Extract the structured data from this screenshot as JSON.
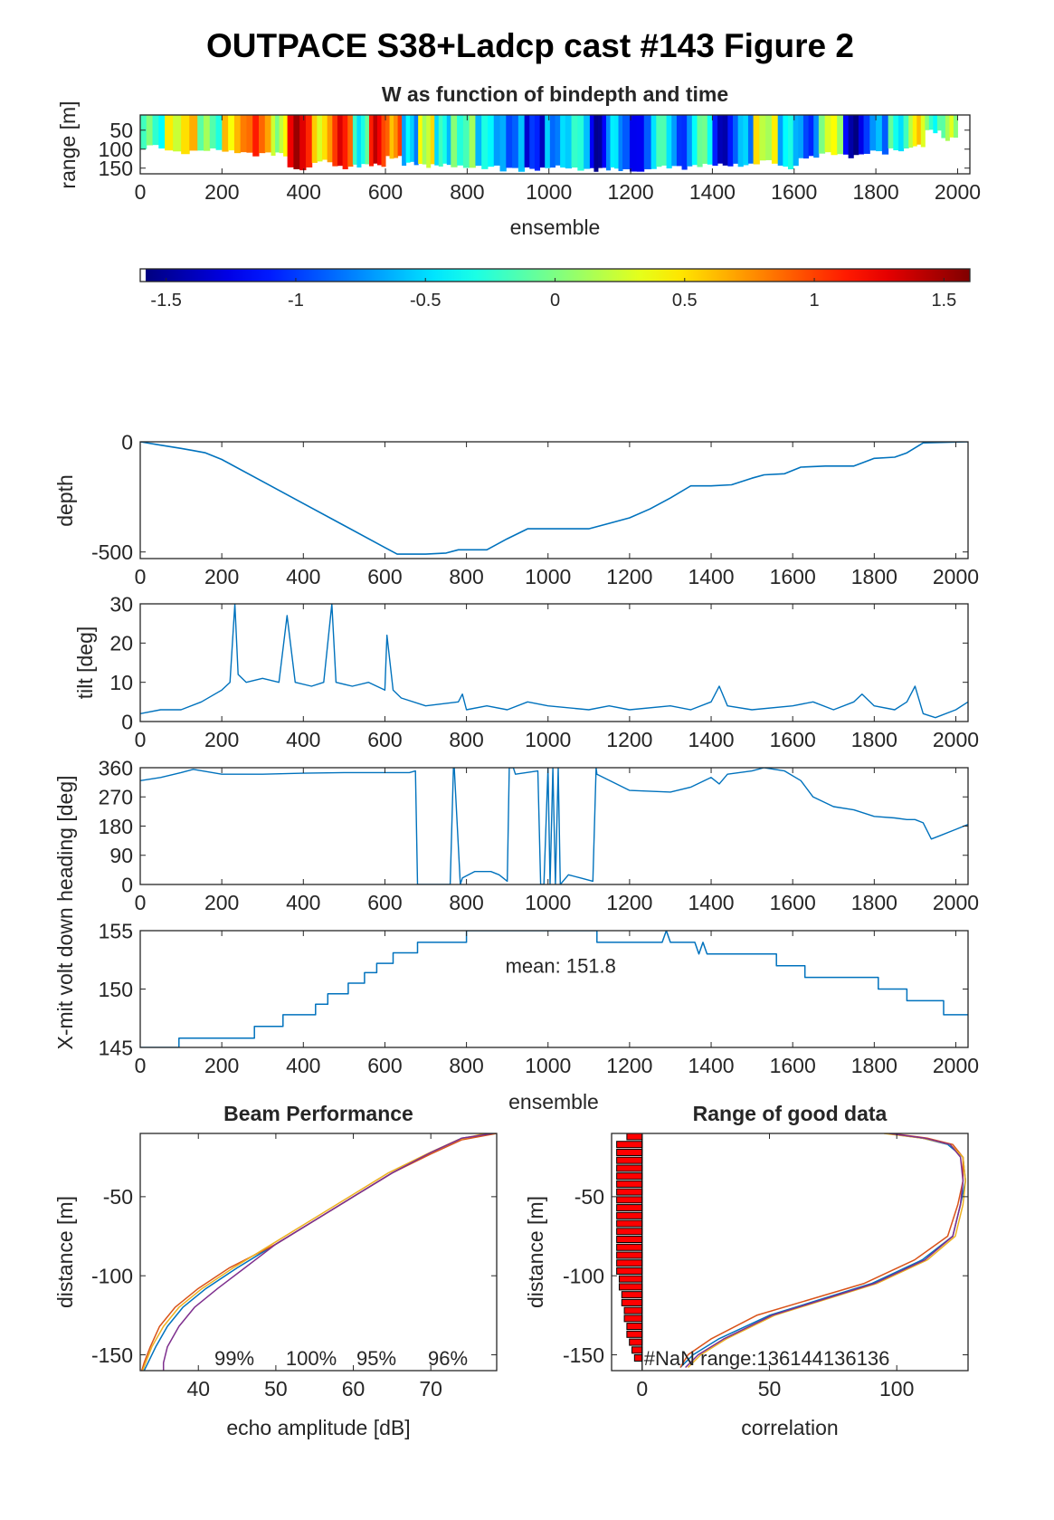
{
  "figure": {
    "title": "OUTPACE S38+Ladcp cast #143 Figure 2"
  },
  "colors": {
    "line": "#0072BD",
    "axis": "#262626",
    "beams": [
      "#0072BD",
      "#D95319",
      "#EDB120",
      "#7E2F8E"
    ],
    "nan_bar": "#FF0000"
  },
  "chart_data": [
    {
      "id": "w",
      "type": "heatmap",
      "title": "W as function of bindepth and time",
      "xlabel": "ensemble",
      "ylabel": "range [m]",
      "xlim": [
        0,
        2030
      ],
      "ylim": [
        165,
        10
      ],
      "xticks": [
        0,
        200,
        400,
        600,
        800,
        1000,
        1200,
        1400,
        1600,
        1800,
        2000
      ],
      "yticks": [
        50,
        100,
        150
      ],
      "colorbar": {
        "clim": [
          -1.6,
          1.6
        ],
        "ticks": [
          -1.5,
          -1,
          -0.5,
          0,
          0.5,
          1,
          1.5
        ],
        "ticklabels": [
          "-1.5",
          "-1",
          "-0.5",
          "0",
          "0.5",
          "1",
          "1.5"
        ],
        "colormap": "jet"
      },
      "columns": [
        {
          "x0": 0,
          "x1": 60,
          "w": -0.2,
          "bottom": 100
        },
        {
          "x0": 60,
          "x1": 140,
          "w": 0.45,
          "bottom": 115
        },
        {
          "x0": 140,
          "x1": 200,
          "w": -0.1,
          "bottom": 110
        },
        {
          "x0": 200,
          "x1": 260,
          "w": 0.6,
          "bottom": 115
        },
        {
          "x0": 260,
          "x1": 320,
          "w": 0.9,
          "bottom": 120
        },
        {
          "x0": 320,
          "x1": 360,
          "w": 0.2,
          "bottom": 120
        },
        {
          "x0": 360,
          "x1": 420,
          "w": 1.3,
          "bottom": 160
        },
        {
          "x0": 420,
          "x1": 470,
          "w": 0.5,
          "bottom": 140
        },
        {
          "x0": 470,
          "x1": 520,
          "w": 1.1,
          "bottom": 155
        },
        {
          "x0": 520,
          "x1": 560,
          "w": -0.3,
          "bottom": 150
        },
        {
          "x0": 560,
          "x1": 600,
          "w": 1.2,
          "bottom": 150
        },
        {
          "x0": 600,
          "x1": 640,
          "w": 0.8,
          "bottom": 130
        },
        {
          "x0": 640,
          "x1": 680,
          "w": -0.6,
          "bottom": 145
        },
        {
          "x0": 680,
          "x1": 720,
          "w": 0.3,
          "bottom": 150
        },
        {
          "x0": 720,
          "x1": 760,
          "w": -0.4,
          "bottom": 150
        },
        {
          "x0": 760,
          "x1": 820,
          "w": -0.1,
          "bottom": 155
        },
        {
          "x0": 820,
          "x1": 880,
          "w": -0.5,
          "bottom": 155
        },
        {
          "x0": 880,
          "x1": 940,
          "w": -0.8,
          "bottom": 160
        },
        {
          "x0": 940,
          "x1": 990,
          "w": -1.2,
          "bottom": 160
        },
        {
          "x0": 990,
          "x1": 1040,
          "w": -0.7,
          "bottom": 155
        },
        {
          "x0": 1040,
          "x1": 1100,
          "w": -0.4,
          "bottom": 160
        },
        {
          "x0": 1100,
          "x1": 1140,
          "w": -1.4,
          "bottom": 160
        },
        {
          "x0": 1140,
          "x1": 1180,
          "w": -0.6,
          "bottom": 160
        },
        {
          "x0": 1180,
          "x1": 1250,
          "w": -1.1,
          "bottom": 165
        },
        {
          "x0": 1250,
          "x1": 1300,
          "w": -0.3,
          "bottom": 155
        },
        {
          "x0": 1300,
          "x1": 1350,
          "w": -0.9,
          "bottom": 155
        },
        {
          "x0": 1350,
          "x1": 1400,
          "w": -0.2,
          "bottom": 150
        },
        {
          "x0": 1400,
          "x1": 1450,
          "w": -1.3,
          "bottom": 150
        },
        {
          "x0": 1450,
          "x1": 1500,
          "w": -0.7,
          "bottom": 150
        },
        {
          "x0": 1500,
          "x1": 1560,
          "w": 0.3,
          "bottom": 140
        },
        {
          "x0": 1560,
          "x1": 1610,
          "w": -0.5,
          "bottom": 155
        },
        {
          "x0": 1610,
          "x1": 1660,
          "w": -0.9,
          "bottom": 130
        },
        {
          "x0": 1660,
          "x1": 1720,
          "w": 0.2,
          "bottom": 120
        },
        {
          "x0": 1720,
          "x1": 1770,
          "w": -1.4,
          "bottom": 125
        },
        {
          "x0": 1770,
          "x1": 1830,
          "w": -0.8,
          "bottom": 115
        },
        {
          "x0": 1830,
          "x1": 1880,
          "w": -0.3,
          "bottom": 110
        },
        {
          "x0": 1880,
          "x1": 1920,
          "w": 0.4,
          "bottom": 100
        },
        {
          "x0": 1920,
          "x1": 1960,
          "w": -0.2,
          "bottom": 60
        },
        {
          "x0": 1960,
          "x1": 2000,
          "w": 0.1,
          "bottom": 80
        }
      ]
    },
    {
      "id": "depth",
      "type": "line",
      "ylabel": "depth",
      "xlim": [
        0,
        2030
      ],
      "ylim": [
        -530,
        0
      ],
      "xticks": [
        0,
        200,
        400,
        600,
        800,
        1000,
        1200,
        1400,
        1600,
        1800,
        2000
      ],
      "yticks": [
        0,
        -500
      ],
      "x": [
        0,
        50,
        100,
        130,
        160,
        200,
        300,
        400,
        500,
        600,
        630,
        700,
        750,
        780,
        850,
        900,
        950,
        1000,
        1050,
        1100,
        1150,
        1200,
        1250,
        1300,
        1350,
        1400,
        1450,
        1500,
        1530,
        1580,
        1620,
        1680,
        1750,
        1800,
        1850,
        1880,
        1920,
        2030
      ],
      "y": [
        0,
        -15,
        -30,
        -40,
        -50,
        -80,
        -180,
        -280,
        -380,
        -480,
        -510,
        -510,
        -505,
        -490,
        -490,
        -440,
        -395,
        -395,
        -395,
        -395,
        -370,
        -345,
        -305,
        -255,
        -200,
        -200,
        -195,
        -165,
        -150,
        -145,
        -115,
        -110,
        -110,
        -75,
        -70,
        -50,
        -5,
        0
      ]
    },
    {
      "id": "tilt",
      "type": "line",
      "ylabel": "tilt [deg]",
      "xlim": [
        0,
        2030
      ],
      "ylim": [
        0,
        30
      ],
      "xticks": [
        0,
        200,
        400,
        600,
        800,
        1000,
        1200,
        1400,
        1600,
        1800,
        2000
      ],
      "yticks": [
        0,
        10,
        20,
        30
      ],
      "x": [
        0,
        50,
        100,
        150,
        200,
        220,
        232,
        240,
        260,
        300,
        340,
        360,
        380,
        420,
        450,
        470,
        480,
        520,
        560,
        600,
        605,
        620,
        640,
        700,
        780,
        790,
        800,
        850,
        900,
        950,
        1000,
        1100,
        1150,
        1200,
        1300,
        1350,
        1400,
        1420,
        1440,
        1500,
        1600,
        1650,
        1700,
        1750,
        1770,
        1800,
        1850,
        1880,
        1900,
        1920,
        1950,
        2000,
        2030
      ],
      "y": [
        2,
        3,
        3,
        5,
        8,
        10,
        30,
        12,
        10,
        11,
        10,
        27,
        10,
        9,
        10,
        30,
        10,
        9,
        10,
        8,
        22,
        8,
        6,
        4,
        5,
        7,
        3,
        4,
        3,
        5,
        4,
        3,
        4,
        3,
        4,
        3,
        5,
        9,
        4,
        3,
        4,
        5,
        3,
        5,
        7,
        4,
        3,
        5,
        9,
        2,
        1,
        3,
        5
      ]
    },
    {
      "id": "heading",
      "type": "line",
      "ylabel": "heading [deg]",
      "xlim": [
        0,
        2030
      ],
      "ylim": [
        0,
        360
      ],
      "xticks": [
        0,
        200,
        400,
        600,
        800,
        1000,
        1200,
        1400,
        1600,
        1800,
        2000
      ],
      "yticks": [
        0,
        90,
        180,
        270,
        360
      ],
      "x": [
        0,
        50,
        100,
        130,
        200,
        300,
        400,
        500,
        600,
        660,
        675,
        680,
        688,
        760,
        768,
        770,
        785,
        790,
        820,
        860,
        880,
        900,
        905,
        915,
        920,
        975,
        982,
        990,
        1000,
        1005,
        1012,
        1018,
        1025,
        1030,
        1050,
        1080,
        1110,
        1118,
        1120,
        1200,
        1300,
        1350,
        1400,
        1420,
        1440,
        1500,
        1530,
        1580,
        1620,
        1650,
        1700,
        1750,
        1800,
        1850,
        1880,
        1900,
        1920,
        1940,
        1960,
        2000,
        2030
      ],
      "y": [
        320,
        330,
        345,
        355,
        340,
        340,
        343,
        345,
        345,
        345,
        350,
        0,
        0,
        0,
        360,
        360,
        0,
        20,
        40,
        40,
        30,
        10,
        360,
        360,
        340,
        350,
        0,
        0,
        360,
        0,
        360,
        0,
        360,
        0,
        30,
        20,
        10,
        360,
        340,
        290,
        285,
        300,
        330,
        310,
        340,
        350,
        360,
        350,
        320,
        270,
        240,
        230,
        210,
        205,
        200,
        200,
        190,
        140,
        150,
        170,
        185
      ]
    },
    {
      "id": "voltage",
      "type": "line",
      "ylabel": "X-mit volt down",
      "xlabel": "ensemble",
      "xlim": [
        0,
        2030
      ],
      "ylim": [
        145,
        155
      ],
      "xticks": [
        0,
        200,
        400,
        600,
        800,
        1000,
        1200,
        1400,
        1600,
        1800,
        2000
      ],
      "yticks": [
        145,
        150,
        155
      ],
      "annotation": "mean: 151.8",
      "x": [
        0,
        95,
        95,
        280,
        280,
        350,
        350,
        430,
        430,
        460,
        460,
        510,
        510,
        550,
        550,
        580,
        580,
        620,
        620,
        680,
        680,
        800,
        800,
        1120,
        1120,
        1280,
        1290,
        1300,
        1360,
        1370,
        1380,
        1390,
        1400,
        1560,
        1560,
        1630,
        1630,
        1810,
        1810,
        1880,
        1880,
        1970,
        1970,
        2030
      ],
      "y": [
        145,
        145,
        145.8,
        145.8,
        146.8,
        146.8,
        147.8,
        147.8,
        148.7,
        148.7,
        149.6,
        149.6,
        150.5,
        150.5,
        151.4,
        151.4,
        152.2,
        152.2,
        153.1,
        153.1,
        154,
        154,
        155,
        155,
        154,
        154,
        155,
        154,
        154,
        153,
        154,
        153,
        153,
        153,
        152,
        152,
        151,
        151,
        150,
        150,
        149,
        149,
        147.8,
        147.8
      ]
    },
    {
      "id": "beam",
      "type": "line",
      "title": "Beam Performance",
      "xlabel": "echo amplitude [dB]",
      "ylabel": "distance [m]",
      "xlim": [
        32.5,
        78.5
      ],
      "ylim": [
        -160,
        -10
      ],
      "xticks": [
        40,
        50,
        60,
        70
      ],
      "yticks": [
        -50,
        -100,
        -150
      ],
      "annotations": [
        "99%",
        "100%",
        "95%",
        "96%"
      ],
      "series": [
        {
          "x": [
            78,
            74,
            70,
            65,
            60,
            55,
            50,
            45,
            41,
            38,
            36,
            34.5,
            33.5,
            33
          ],
          "y": [
            -10,
            -13,
            -22,
            -35,
            -50,
            -65,
            -80,
            -95,
            -108,
            -120,
            -132,
            -145,
            -155,
            -160
          ]
        },
        {
          "x": [
            78.5,
            74,
            70,
            65,
            60,
            55,
            50,
            44,
            40,
            37,
            35,
            33.8,
            33,
            32.7
          ],
          "y": [
            -10,
            -14,
            -23,
            -35,
            -50,
            -65,
            -80,
            -95,
            -108,
            -120,
            -132,
            -145,
            -155,
            -160
          ]
        },
        {
          "x": [
            77,
            73.5,
            69.5,
            64.5,
            59.5,
            54.5,
            49.5,
            44.5,
            40.5,
            37.5,
            35.5,
            34,
            33.2,
            32.8
          ],
          "y": [
            -10,
            -14,
            -23,
            -35,
            -50,
            -65,
            -80,
            -95,
            -108,
            -120,
            -132,
            -145,
            -155,
            -160
          ]
        },
        {
          "x": [
            78,
            74,
            70,
            65,
            60,
            55,
            50,
            46,
            42.5,
            39.5,
            37.5,
            36,
            35.5,
            35.5
          ],
          "y": [
            -10,
            -13,
            -22,
            -35,
            -50,
            -65,
            -80,
            -95,
            -108,
            -120,
            -132,
            -145,
            -155,
            -160
          ]
        }
      ]
    },
    {
      "id": "range",
      "type": "line",
      "title": "Range of good data",
      "xlabel": "correlation",
      "ylabel": "distance [m]",
      "xlim": [
        -12,
        128
      ],
      "ylim": [
        -160,
        -10
      ],
      "xticks": [
        0,
        50,
        100
      ],
      "yticks": [
        -50,
        -100,
        -150
      ],
      "annotation": "#NaN range:136144136136",
      "nan_bars": {
        "y": [
          -12,
          -17,
          -22,
          -27,
          -32,
          -37,
          -42,
          -47,
          -52,
          -57,
          -62,
          -67,
          -72,
          -77,
          -82,
          -87,
          -92,
          -97,
          -102,
          -107,
          -112,
          -117,
          -122,
          -127,
          -132,
          -137,
          -142,
          -147,
          -152
        ],
        "x_left": [
          -6,
          -10,
          -10,
          -10,
          -10,
          -10,
          -10,
          -10,
          -10,
          -10,
          -10,
          -10,
          -10,
          -10,
          -10,
          -10,
          -10,
          -10,
          -9,
          -9,
          -8,
          -8,
          -7,
          -7,
          -6,
          -6,
          -5,
          -4,
          -3
        ]
      },
      "series": [
        {
          "x": [
            96,
            110,
            120,
            126,
            127,
            125,
            122,
            110,
            90,
            70,
            50,
            30,
            20,
            15
          ],
          "y": [
            -10,
            -13,
            -17,
            -25,
            -40,
            -55,
            -75,
            -90,
            -105,
            -115,
            -125,
            -140,
            -150,
            -158
          ]
        },
        {
          "x": [
            98,
            112,
            122,
            126,
            126,
            124,
            120,
            107,
            87,
            66,
            45,
            27,
            18,
            15
          ],
          "y": [
            -10,
            -13,
            -17,
            -25,
            -40,
            -55,
            -75,
            -90,
            -105,
            -115,
            -125,
            -140,
            -150,
            -158
          ]
        },
        {
          "x": [
            95,
            110,
            121,
            126,
            127,
            126,
            123,
            112,
            92,
            72,
            52,
            33,
            23,
            18
          ],
          "y": [
            -10,
            -13,
            -17,
            -25,
            -40,
            -55,
            -75,
            -90,
            -105,
            -115,
            -125,
            -140,
            -150,
            -158
          ]
        },
        {
          "x": [
            97,
            111,
            121,
            125,
            126,
            125,
            122,
            111,
            91,
            71,
            51,
            32,
            22,
            17
          ],
          "y": [
            -10,
            -13,
            -17,
            -25,
            -40,
            -55,
            -75,
            -90,
            -105,
            -115,
            -125,
            -140,
            -150,
            -158
          ]
        }
      ]
    }
  ]
}
